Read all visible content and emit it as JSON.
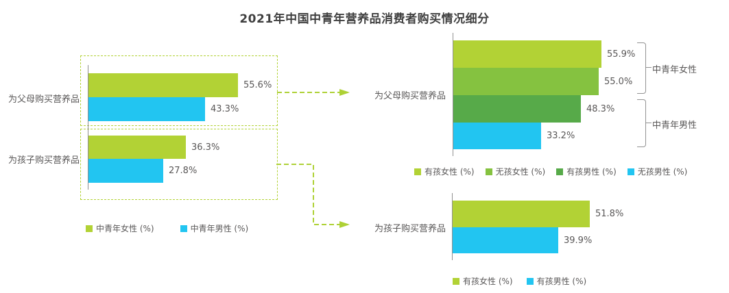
{
  "title": "2021年中国中青年营养品消费者购买情况细分",
  "palette": {
    "light_green": "#b2d235",
    "mid_green": "#85c240",
    "dark_green": "#57aa49",
    "cyan": "#22c5f1",
    "arrow_green": "#aed135",
    "text_gray": "#595757",
    "title_gray": "#3f3f3f",
    "axis_gray": "#8f8f8f",
    "bracket_gray": "#919191"
  },
  "chart_data": [
    {
      "id": "overview-by-gender",
      "type": "bar",
      "orientation": "horizontal",
      "categories": [
        "为父母购买营养品",
        "为孩子购买营养品"
      ],
      "series": [
        {
          "name": "中青年女性 (%)",
          "color": "#b2d235",
          "values": [
            55.6,
            36.3
          ],
          "value_labels": [
            "55.6%",
            "36.3%"
          ]
        },
        {
          "name": "中青年男性 (%)",
          "color": "#22c5f1",
          "values": [
            43.3,
            27.8
          ],
          "value_labels": [
            "43.3%",
            "27.8%"
          ]
        }
      ],
      "legend_position": "bottom",
      "grid": false
    },
    {
      "id": "parents-detail-by-child-status",
      "type": "bar",
      "orientation": "horizontal",
      "categories": [
        "为父母购买营养品"
      ],
      "series": [
        {
          "name": "有孩女性 (%)",
          "color": "#b2d235",
          "values": [
            55.9
          ],
          "value_labels": [
            "55.9%"
          ]
        },
        {
          "name": "无孩女性 (%)",
          "color": "#85c240",
          "values": [
            55.0
          ],
          "value_labels": [
            "55.0%"
          ]
        },
        {
          "name": "有孩男性 (%)",
          "color": "#57aa49",
          "values": [
            48.3
          ],
          "value_labels": [
            "48.3%"
          ]
        },
        {
          "name": "无孩男性 (%)",
          "color": "#22c5f1",
          "values": [
            33.2
          ],
          "value_labels": [
            "33.2%"
          ]
        }
      ],
      "group_annotations": [
        "中青年女性",
        "中青年男性"
      ],
      "legend_position": "bottom",
      "grid": false
    },
    {
      "id": "children-detail-by-child-status",
      "type": "bar",
      "orientation": "horizontal",
      "categories": [
        "为孩子购买营养品"
      ],
      "series": [
        {
          "name": "有孩女性 (%)",
          "color": "#b2d235",
          "values": [
            51.8
          ],
          "value_labels": [
            "51.8%"
          ]
        },
        {
          "name": "有孩男性 (%)",
          "color": "#22c5f1",
          "values": [
            39.9
          ],
          "value_labels": [
            "39.9%"
          ]
        }
      ],
      "legend_position": "bottom",
      "grid": false
    }
  ]
}
